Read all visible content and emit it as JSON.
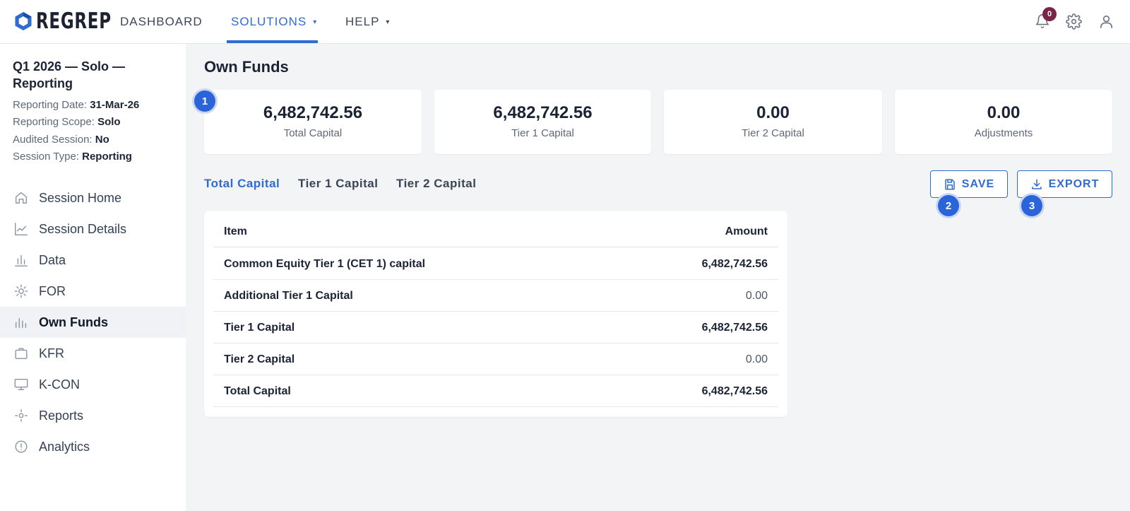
{
  "brand": {
    "name": "REGREP"
  },
  "nav": {
    "dashboard": "DASHBOARD",
    "solutions": "SOLUTIONS",
    "help": "HELP",
    "caret": "▾"
  },
  "header": {
    "notification_count": "0"
  },
  "session": {
    "title": "Q1 2026 — Solo — Reporting",
    "meta": [
      {
        "label": "Reporting Date:",
        "value": "31-Mar-26"
      },
      {
        "label": "Reporting Scope:",
        "value": "Solo"
      },
      {
        "label": "Audited Session:",
        "value": "No"
      },
      {
        "label": "Session Type:",
        "value": "Reporting"
      }
    ]
  },
  "sidebar": {
    "items": [
      {
        "label": "Session Home",
        "icon": "home-icon"
      },
      {
        "label": "Session Details",
        "icon": "line-chart-icon"
      },
      {
        "label": "Data",
        "icon": "bar-chart-icon"
      },
      {
        "label": "FOR",
        "icon": "sun-icon"
      },
      {
        "label": "Own Funds",
        "icon": "bars-icon",
        "active": true
      },
      {
        "label": "KFR",
        "icon": "briefcase-icon"
      },
      {
        "label": "K-CON",
        "icon": "monitor-icon"
      },
      {
        "label": "Reports",
        "icon": "crosshair-icon"
      },
      {
        "label": "Analytics",
        "icon": "alert-circle-icon"
      }
    ]
  },
  "main": {
    "title": "Own Funds",
    "stats": [
      {
        "value": "6,482,742.56",
        "label": "Total Capital"
      },
      {
        "value": "6,482,742.56",
        "label": "Tier 1 Capital"
      },
      {
        "value": "0.00",
        "label": "Tier 2 Capital"
      },
      {
        "value": "0.00",
        "label": "Adjustments"
      }
    ],
    "tabs": [
      "Total Capital",
      "Tier 1 Capital",
      "Tier 2 Capital"
    ],
    "active_tab": "Total Capital",
    "save_label": "SAVE",
    "export_label": "EXPORT",
    "steps": [
      "1",
      "2",
      "3"
    ],
    "table": {
      "headers": {
        "item": "Item",
        "amount": "Amount"
      },
      "rows": [
        {
          "item": "Common Equity Tier 1 (CET 1) capital",
          "amount": "6,482,742.56"
        },
        {
          "item": "Additional Tier 1 Capital",
          "amount": "0.00"
        },
        {
          "item": "Tier 1 Capital",
          "amount": "6,482,742.56"
        },
        {
          "item": "Tier 2 Capital",
          "amount": "0.00"
        },
        {
          "item": "Total Capital",
          "amount": "6,482,742.56"
        }
      ]
    }
  },
  "colors": {
    "accent": "#2f6cd1",
    "badge": "#7a2447",
    "step": "#2b63d9"
  }
}
